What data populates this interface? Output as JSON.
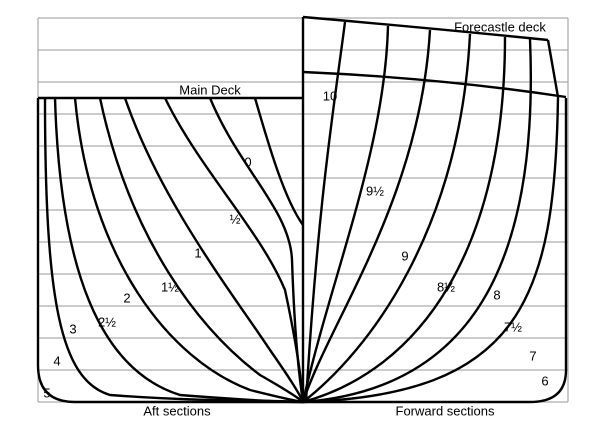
{
  "decks": {
    "forecastle": "Forecastle deck",
    "main": "Main Deck"
  },
  "aft": {
    "label": "Aft sections",
    "stations": [
      "0",
      "½",
      "1",
      "1½",
      "2",
      "2½",
      "3",
      "4",
      "5"
    ]
  },
  "forward": {
    "label": "Forward sections",
    "stations": [
      "10",
      "9½",
      "9",
      "8½",
      "8",
      "7½",
      "7",
      "6"
    ]
  }
}
